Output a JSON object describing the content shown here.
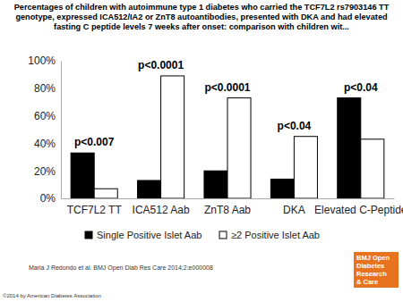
{
  "chart_data": {
    "type": "bar",
    "title": "Percentages of children with autoimmune type 1 diabetes who carried the TCF7L2 rs7903146 TT genotype, expressed ICA512/IA2 or ZnT8 autoantibodies, presented with DKA and had elevated fasting C peptide levels 7 weeks after onset: comparison with children wit...",
    "categories": [
      "TCF7L2 TT",
      "ICA512 Aab",
      "ZnT8 Aab",
      "DKA",
      "Elevated C-Peptide"
    ],
    "series": [
      {
        "name": "Single Positive Islet Aab",
        "color": "#000000",
        "values": [
          33,
          13,
          20,
          14,
          73
        ]
      },
      {
        "name": "≥2  Positive Islet Aab",
        "color": "#ffffff",
        "values": [
          7,
          89,
          73,
          45,
          43
        ]
      }
    ],
    "annotations": [
      "p<0.007",
      "p<0.0001",
      "p<0.0001",
      "p<0.04",
      "p<0.04"
    ],
    "ylim": [
      0,
      100
    ],
    "yticks": [
      {
        "value": 0,
        "label": "0%"
      },
      {
        "value": 20,
        "label": "20%"
      },
      {
        "value": 40,
        "label": "40%"
      },
      {
        "value": 60,
        "label": "60%"
      },
      {
        "value": 80,
        "label": "80%"
      },
      {
        "value": 100,
        "label": "100%"
      }
    ],
    "grid": false,
    "legend": "bottom",
    "source": "Maria J Redondo et al. BMJ Open Diab Res Care 2014;2:e000008",
    "copyright": "©2014 by American Diabetes Association",
    "logo": [
      "BMJ Open",
      "Diabetes",
      "Research",
      "& Care"
    ]
  }
}
